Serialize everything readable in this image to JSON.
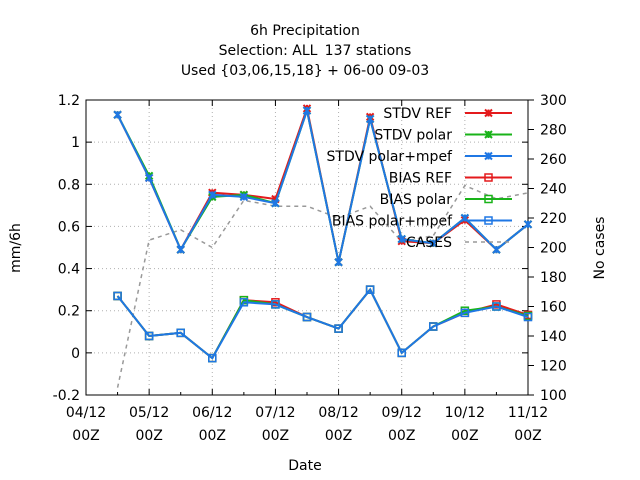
{
  "chart_data": {
    "type": "line",
    "title": "6h Precipitation",
    "subtitle_selection": "Selection: ALL",
    "subtitle_stations": "137 stations",
    "subtitle_used": "Used {03,06,15,18} + 06-00 09-03",
    "xlabel": "Date",
    "ylabel": "mm/6h",
    "y2label": "No cases",
    "ylim": [
      -0.2,
      1.2
    ],
    "y2lim": [
      100,
      300
    ],
    "grid": true,
    "legend_position": "top-right",
    "x_ticks": [
      {
        "line1": "04/12",
        "line2": "00Z"
      },
      {
        "line1": "05/12",
        "line2": "00Z"
      },
      {
        "line1": "06/12",
        "line2": "00Z"
      },
      {
        "line1": "07/12",
        "line2": "00Z"
      },
      {
        "line1": "08/12",
        "line2": "00Z"
      },
      {
        "line1": "09/12",
        "line2": "00Z"
      },
      {
        "line1": "10/12",
        "line2": "00Z"
      },
      {
        "line1": "11/12",
        "line2": "00Z"
      }
    ],
    "y_ticks": [
      "-0.2",
      "0",
      "0.2",
      "0.4",
      "0.6",
      "0.8",
      "1",
      "1.2"
    ],
    "y2_ticks": [
      "100",
      "120",
      "140",
      "160",
      "180",
      "200",
      "220",
      "240",
      "260",
      "280",
      "300"
    ],
    "x": [
      "04/12 12Z",
      "05/12 00Z",
      "05/12 12Z",
      "06/12 00Z",
      "06/12 12Z",
      "07/12 00Z",
      "07/12 12Z",
      "08/12 00Z",
      "08/12 12Z",
      "09/12 00Z",
      "09/12 12Z",
      "10/12 00Z",
      "10/12 12Z",
      "11/12 00Z"
    ],
    "series": [
      {
        "name": "STDV REF",
        "color": "#e41a1c",
        "marker": "x",
        "axis": "y1",
        "values": [
          1.13,
          0.83,
          0.49,
          0.76,
          0.75,
          0.73,
          1.16,
          0.43,
          1.12,
          0.53,
          0.52,
          0.63,
          0.49,
          0.61
        ]
      },
      {
        "name": "STDV polar",
        "color": "#19b319",
        "marker": "x",
        "axis": "y1",
        "values": [
          1.13,
          0.84,
          0.49,
          0.74,
          0.75,
          0.71,
          1.15,
          0.43,
          1.11,
          0.54,
          0.52,
          0.64,
          0.49,
          0.61
        ]
      },
      {
        "name": "STDV polar+mpef",
        "color": "#1f77e4",
        "marker": "x",
        "axis": "y1",
        "values": [
          1.13,
          0.83,
          0.49,
          0.75,
          0.74,
          0.71,
          1.15,
          0.43,
          1.11,
          0.54,
          0.52,
          0.64,
          0.49,
          0.61
        ]
      },
      {
        "name": "BIAS REF",
        "color": "#e41a1c",
        "marker": "square",
        "axis": "y1",
        "values": [
          0.27,
          0.08,
          0.095,
          -0.025,
          0.25,
          0.24,
          0.17,
          0.115,
          0.3,
          0.0,
          0.125,
          0.19,
          0.23,
          0.18
        ]
      },
      {
        "name": "BIAS polar",
        "color": "#19b319",
        "marker": "square",
        "axis": "y1",
        "values": [
          0.27,
          0.08,
          0.095,
          -0.025,
          0.25,
          0.23,
          0.17,
          0.115,
          0.3,
          0.0,
          0.125,
          0.2,
          0.22,
          0.175
        ]
      },
      {
        "name": "BIAS polar+mpef",
        "color": "#1f77e4",
        "marker": "square",
        "axis": "y1",
        "values": [
          0.27,
          0.08,
          0.095,
          -0.025,
          0.24,
          0.23,
          0.17,
          0.115,
          0.3,
          0.0,
          0.125,
          0.19,
          0.22,
          0.17
        ]
      },
      {
        "name": "CASES",
        "color": "#999999",
        "marker": "none",
        "dashed": true,
        "axis": "y2",
        "x": [
          "04/12 12Z",
          "05/12 00Z",
          "05/12 12Z",
          "06/12 00Z",
          "06/12 12Z",
          "07/12 00Z",
          "07/12 12Z",
          "08/12 00Z",
          "08/12 12Z",
          "09/12 00Z",
          "09/12 12Z",
          "10/12 00Z",
          "10/12 12Z",
          "11/12 00Z"
        ],
        "values": [
          105,
          205,
          212,
          200,
          232,
          228,
          228,
          220,
          228,
          204,
          208,
          242,
          233,
          237
        ]
      }
    ]
  }
}
